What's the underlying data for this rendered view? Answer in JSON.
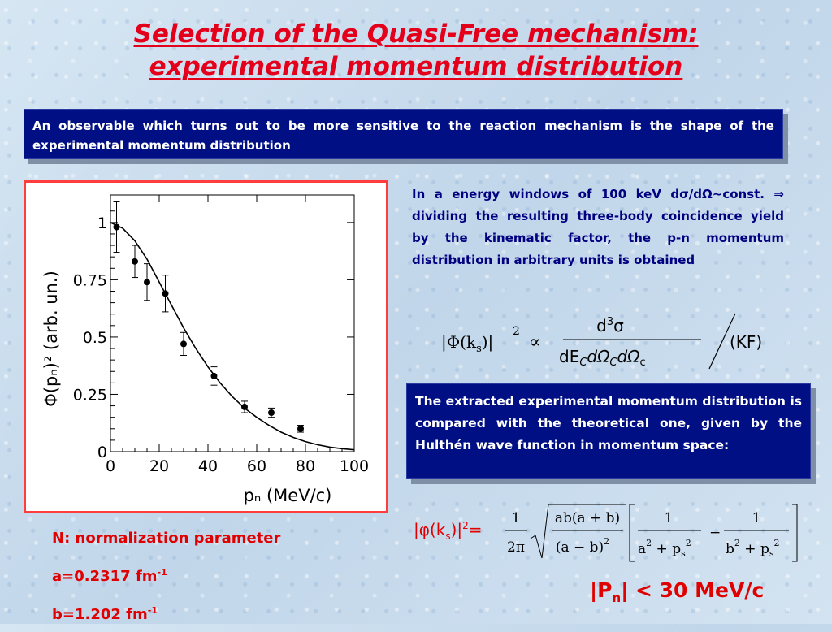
{
  "title": {
    "line1": "Selection of the Quasi-Free mechanism:",
    "line2": "experimental momentum distribution"
  },
  "intro_box": "An observable which turns out to be more sensitive to the reaction mechanism is the shape of the experimental momentum distribution",
  "description": "In a energy windows of 100 keV dσ/dΩ~const. ⇒ dividing the resulting three-body coincidence yield by the kinematic factor, the p-n momentum distribution in arbitrary units is obtained",
  "hulthen_box": "The extracted experimental momentum distribution is compared with the theoretical one, given by the Hulthén wave function in momentum space:",
  "params": {
    "n_label": "N: normalization parameter",
    "a_label": "a=0.2317 fm",
    "a_exp": "-1",
    "b_label": "b=1.202 fm",
    "b_exp": "-1"
  },
  "cut": {
    "pre": "|P",
    "sub": "n",
    "post": "| < 30 MeV/c"
  },
  "colors": {
    "title_red": "#e4001b",
    "box_blue": "#000f84",
    "text_navy": "#000080",
    "frame_red": "#ff3d3d"
  },
  "equations": {
    "phi_lhs": "|Φ(k",
    "phi_lhs_sub": "s",
    "phi_lhs_end": ")|",
    "phi_exp": "2",
    "propto": "∝",
    "numerator": "d",
    "numerator_exp": "3",
    "numerator_end": "σ",
    "denominator": "dE",
    "denominator_sub": "C",
    "denominator_mid": "dΩ",
    "denominator_sub2": "C",
    "denominator_mid2": "dΩ",
    "denominator_sub3": "c",
    "kf": "(KF)",
    "hulthen_lhs": "|φ(k",
    "hulthen_lhs_sub": "s",
    "hulthen_lhs_end": ")|",
    "hulthen_lhs_exp": "2",
    "hulthen_lhs_eq": "=",
    "one": "1",
    "two_pi": "2π",
    "ab_num": "ab(a + b)",
    "ab_den": "(a − b)",
    "ab_den_exp": "2",
    "frac1_den_a": "a",
    "frac1_den_mid": " + p",
    "frac1_den_sub": "s",
    "minus": "−",
    "frac2_den_b": "b",
    "sq_exp": "2"
  },
  "chart_data": {
    "type": "scatter",
    "title": "",
    "xlabel": "pₙ (MeV/c)",
    "ylabel": "Φ(pₙ)² (arb. un.)",
    "xlim": [
      0,
      100
    ],
    "ylim": [
      0,
      1.12
    ],
    "x_ticks": [
      "0",
      "20",
      "40",
      "60",
      "80",
      "100"
    ],
    "y_ticks": [
      "0",
      "0.25",
      "0.5",
      "0.75",
      "1"
    ],
    "points": [
      {
        "x": 2.5,
        "y": 0.98,
        "err": 0.11
      },
      {
        "x": 10,
        "y": 0.83,
        "err": 0.07
      },
      {
        "x": 15,
        "y": 0.74,
        "err": 0.08
      },
      {
        "x": 22.5,
        "y": 0.69,
        "err": 0.08
      },
      {
        "x": 30,
        "y": 0.47,
        "err": 0.05
      },
      {
        "x": 42.5,
        "y": 0.33,
        "err": 0.04
      },
      {
        "x": 55,
        "y": 0.195,
        "err": 0.025
      },
      {
        "x": 66,
        "y": 0.17,
        "err": 0.02
      },
      {
        "x": 78,
        "y": 0.1,
        "err": 0.015
      }
    ],
    "curve": {
      "name": "",
      "x": [
        0,
        5,
        10,
        15,
        20,
        25,
        30,
        35,
        40,
        45,
        50,
        55,
        60,
        65,
        70,
        75,
        80,
        85,
        90,
        95,
        100
      ],
      "y": [
        1.0,
        0.975,
        0.92,
        0.84,
        0.74,
        0.64,
        0.54,
        0.45,
        0.37,
        0.3,
        0.24,
        0.19,
        0.15,
        0.115,
        0.085,
        0.062,
        0.044,
        0.03,
        0.02,
        0.013,
        0.008
      ]
    }
  }
}
